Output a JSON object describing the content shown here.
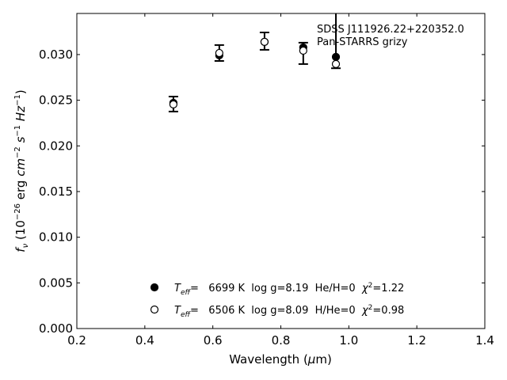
{
  "chart_data": {
    "type": "scatter",
    "xlabel": "Wavelength (μm)",
    "ylabel": "f_ν (10^-26 erg cm^-2 s^-1 Hz^-1)",
    "xlim": [
      0.2,
      1.4
    ],
    "ylim": [
      0.0,
      0.0345
    ],
    "xticks": [
      "0.2",
      "0.4",
      "0.6",
      "0.8",
      "1.0",
      "1.2",
      "1.4"
    ],
    "yticks": [
      "0.000",
      "0.005",
      "0.010",
      "0.015",
      "0.020",
      "0.025",
      "0.030"
    ],
    "grid": false,
    "annotation": [
      "SDSS J111926.22+220352.0",
      "Pan-STARRS grizy"
    ],
    "observed": {
      "x": [
        0.484,
        0.619,
        0.752,
        0.866,
        0.962
      ],
      "y": [
        0.02458,
        0.03017,
        0.03147,
        0.03013,
        0.0296
      ],
      "err_low": [
        0.00082,
        0.00087,
        0.00095,
        0.00117,
        0.0011
      ],
      "err_high": [
        0.00082,
        0.00087,
        0.00095,
        0.00117,
        0.006
      ]
    },
    "series": [
      {
        "name": "Teff= 6699 K  log g=8.19  He/H=0  χ2=1.22",
        "marker": "filled-circle",
        "legend": {
          "teff": "6699 K",
          "logg": "log g=8.19",
          "comp": "He/H=0",
          "chi2": "=1.22"
        },
        "x": [
          0.484,
          0.619,
          0.752,
          0.866,
          0.962
        ],
        "y": [
          0.02471,
          0.02991,
          0.03139,
          0.03078,
          0.02974
        ]
      },
      {
        "name": "Teff= 6506 K  log g=8.09  H/He=0  χ2=0.98",
        "marker": "open-circle",
        "legend": {
          "teff": "6506 K",
          "logg": "log g=8.09",
          "comp": "H/He=0",
          "chi2": "=0.98"
        },
        "x": [
          0.484,
          0.619,
          0.752,
          0.866,
          0.962
        ],
        "y": [
          0.02454,
          0.03017,
          0.03139,
          0.03043,
          0.02896
        ]
      }
    ],
    "legend_position": "bottom-center",
    "colors": {
      "marker": "#000000",
      "background": "#ffffff"
    }
  }
}
